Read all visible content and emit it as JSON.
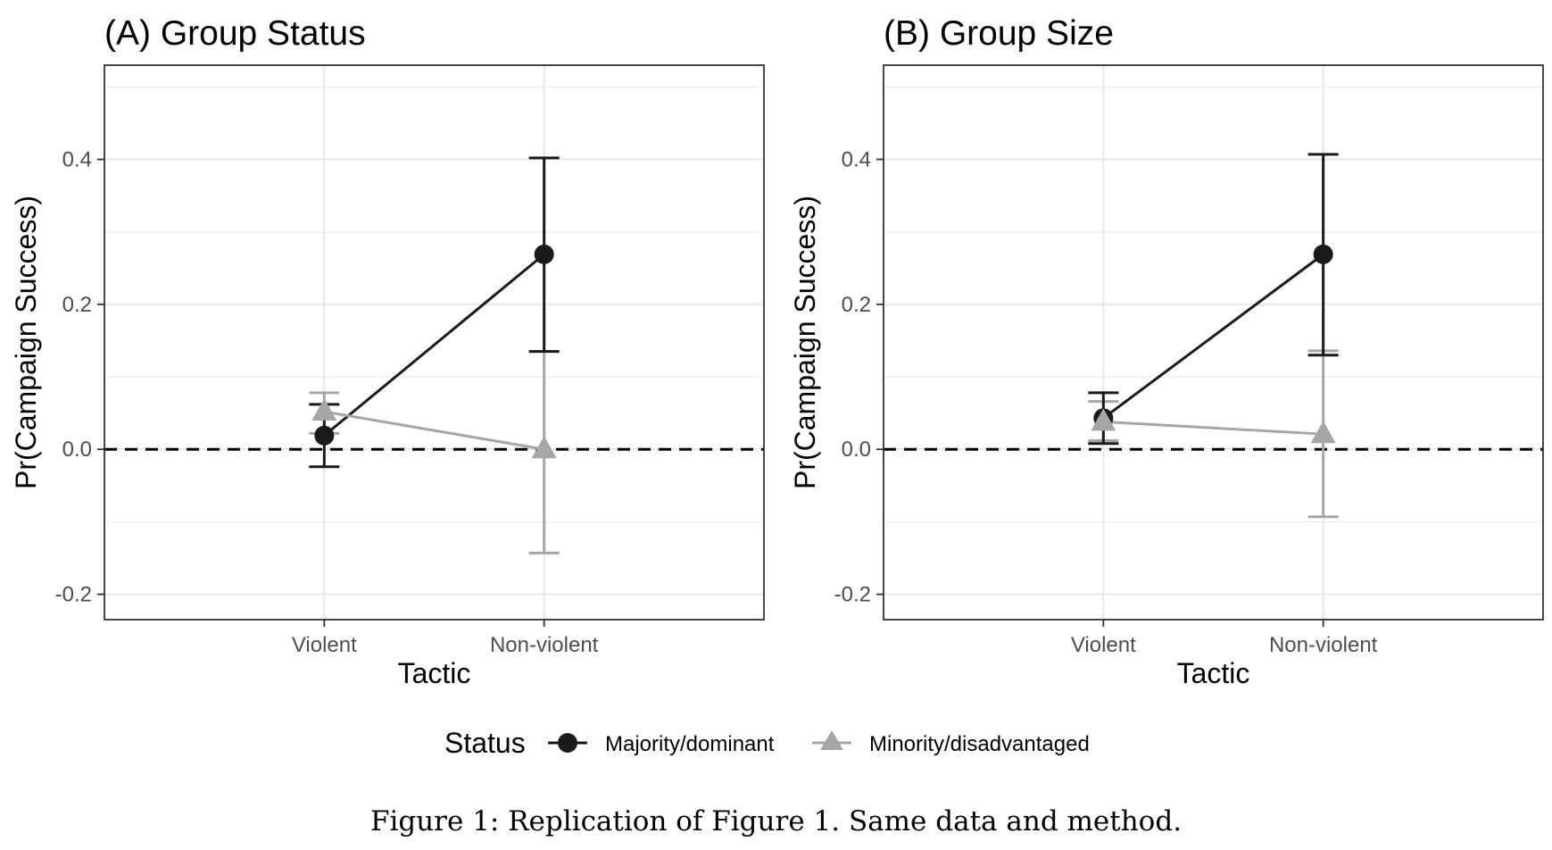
{
  "chart_data": [
    {
      "type": "line",
      "title": "(A) Group Status",
      "xlabel": "Tactic",
      "ylabel": "Pr(Campaign Success)",
      "categories": [
        "Violent",
        "Non-violent"
      ],
      "ylim": [
        -0.235,
        0.53
      ],
      "yticks": [
        -0.2,
        0.0,
        0.2,
        0.4
      ],
      "ytick_labels": [
        "-0.2",
        "0.0",
        "0.2",
        "0.4"
      ],
      "reference_line": 0.0,
      "grid": true,
      "series": [
        {
          "name": "Majority/dominant",
          "marker": "circle",
          "color": "#1a1a1a",
          "values": [
            0.019,
            0.269
          ],
          "lower": [
            -0.024,
            0.135
          ],
          "upper": [
            0.062,
            0.402
          ]
        },
        {
          "name": "Minority/disadvantaged",
          "marker": "triangle",
          "color": "#a6a6a6",
          "values": [
            0.052,
            0.0
          ],
          "lower": [
            0.022,
            -0.143
          ],
          "upper": [
            0.078,
            0.135
          ]
        }
      ]
    },
    {
      "type": "line",
      "title": "(B) Group Size",
      "xlabel": "Tactic",
      "ylabel": "Pr(Campaign Success)",
      "categories": [
        "Violent",
        "Non-violent"
      ],
      "ylim": [
        -0.235,
        0.53
      ],
      "yticks": [
        -0.2,
        0.0,
        0.2,
        0.4
      ],
      "ytick_labels": [
        "-0.2",
        "0.0",
        "0.2",
        "0.4"
      ],
      "reference_line": 0.0,
      "grid": true,
      "series": [
        {
          "name": "Majority/dominant",
          "marker": "circle",
          "color": "#1a1a1a",
          "values": [
            0.043,
            0.269
          ],
          "lower": [
            0.008,
            0.13
          ],
          "upper": [
            0.078,
            0.407
          ]
        },
        {
          "name": "Minority/disadvantaged",
          "marker": "triangle",
          "color": "#a6a6a6",
          "values": [
            0.038,
            0.021
          ],
          "lower": [
            0.012,
            -0.093
          ],
          "upper": [
            0.066,
            0.136
          ]
        }
      ]
    }
  ],
  "legend": {
    "title": "Status",
    "position": "bottom",
    "entries": [
      "Majority/dominant",
      "Minority/disadvantaged"
    ]
  },
  "caption": "Figure 1: Replication of Figure 1. Same data and method."
}
